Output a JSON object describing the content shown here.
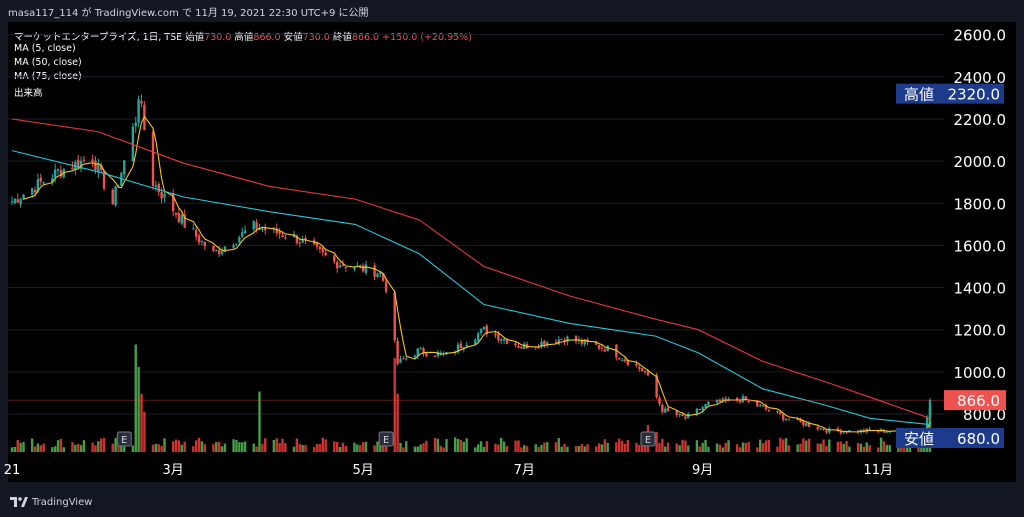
{
  "header": {
    "user": "masa117_114",
    "text": "masa117_114 が TradingView.com で 11月 19, 2021 22:30 UTC+9 に公開"
  },
  "legend": {
    "symbol": "マーケットエンタープライズ, 1日, TSE",
    "open_label": "始値",
    "open": "730.0",
    "high_label": "高値",
    "high": "866.0",
    "low_label": "安値",
    "low": "730.0",
    "close_label": "終値",
    "close": "866.0",
    "change": "+150.0 (+20.95%)",
    "ma5": "MA (5, close)",
    "ma50": "MA (50, close)",
    "ma75": "MA (75, close)",
    "volume": "出来高"
  },
  "price_labels": {
    "high_tag": "高値",
    "high_value": "2320.0",
    "last_value": "866.0",
    "low_tag": "安値",
    "low_value": "680.0"
  },
  "brand": "TradingView",
  "colors": {
    "up": "#26a69a",
    "down": "#ef5350",
    "ma5": "#f5c518",
    "ma50": "#26c6da",
    "ma75": "#e53935",
    "tag_bg": "#1e3a8a"
  },
  "chart_data": {
    "type": "candlestick",
    "ylim": [
      620,
      2660
    ],
    "yticks": [
      "2600.0",
      "2400.0",
      "2200.0",
      "2000.0",
      "1800.0",
      "1600.0",
      "1400.0",
      "1200.0",
      "1000.0",
      "800.0"
    ],
    "ytick_values": [
      2600,
      2400,
      2200,
      2000,
      1800,
      1600,
      1400,
      1200,
      1000,
      800
    ],
    "xticks": [
      {
        "label": "21",
        "date": "2021-01-04"
      },
      {
        "label": "3月",
        "date": "2021-03-01"
      },
      {
        "label": "5月",
        "date": "2021-05-06"
      },
      {
        "label": "7月",
        "date": "2021-07-01"
      },
      {
        "label": "9月",
        "date": "2021-09-01"
      },
      {
        "label": "11月",
        "date": "2021-11-01"
      }
    ],
    "earnings_markers": [
      {
        "label": "E",
        "date": "2021-02-12"
      },
      {
        "label": "E",
        "date": "2021-05-14"
      },
      {
        "label": "E",
        "date": "2021-08-13"
      }
    ],
    "key_points": [
      {
        "date": "2021-01-04",
        "close": 1810
      },
      {
        "date": "2021-01-20",
        "close": 1950
      },
      {
        "date": "2021-02-01",
        "close": 2020
      },
      {
        "date": "2021-02-08",
        "close": 1800
      },
      {
        "date": "2021-02-12",
        "close": 2000
      },
      {
        "date": "2021-02-16",
        "close": 2200
      },
      {
        "date": "2021-02-17",
        "close": 2320
      },
      {
        "date": "2021-02-22",
        "close": 1900
      },
      {
        "date": "2021-03-05",
        "close": 1700
      },
      {
        "date": "2021-03-15",
        "close": 1560
      },
      {
        "date": "2021-03-29",
        "close": 1690
      },
      {
        "date": "2021-04-12",
        "close": 1640
      },
      {
        "date": "2021-04-26",
        "close": 1520
      },
      {
        "date": "2021-05-12",
        "close": 1470
      },
      {
        "date": "2021-05-14",
        "close": 1400
      },
      {
        "date": "2021-05-18",
        "close": 1040
      },
      {
        "date": "2021-05-25",
        "close": 1100
      },
      {
        "date": "2021-06-04",
        "close": 1080
      },
      {
        "date": "2021-06-17",
        "close": 1200
      },
      {
        "date": "2021-06-30",
        "close": 1120
      },
      {
        "date": "2021-07-15",
        "close": 1160
      },
      {
        "date": "2021-07-30",
        "close": 1110
      },
      {
        "date": "2021-08-12",
        "close": 1000
      },
      {
        "date": "2021-08-18",
        "close": 820
      },
      {
        "date": "2021-08-26",
        "close": 780
      },
      {
        "date": "2021-09-03",
        "close": 850
      },
      {
        "date": "2021-09-15",
        "close": 870
      },
      {
        "date": "2021-09-30",
        "close": 780
      },
      {
        "date": "2021-10-15",
        "close": 720
      },
      {
        "date": "2021-11-04",
        "close": 720
      },
      {
        "date": "2021-11-17",
        "close": 716
      },
      {
        "date": "2021-11-19",
        "close": 866
      }
    ],
    "ma50_points": [
      [
        0,
        2050
      ],
      [
        20,
        1950
      ],
      [
        40,
        1830
      ],
      [
        60,
        1760
      ],
      [
        80,
        1700
      ],
      [
        95,
        1560
      ],
      [
        110,
        1320
      ],
      [
        130,
        1230
      ],
      [
        150,
        1170
      ],
      [
        160,
        1090
      ],
      [
        175,
        920
      ],
      [
        190,
        840
      ],
      [
        200,
        780
      ],
      [
        214,
        750
      ]
    ],
    "ma75_points": [
      [
        0,
        2200
      ],
      [
        20,
        2140
      ],
      [
        40,
        1990
      ],
      [
        60,
        1880
      ],
      [
        80,
        1820
      ],
      [
        95,
        1720
      ],
      [
        110,
        1500
      ],
      [
        130,
        1360
      ],
      [
        150,
        1250
      ],
      [
        160,
        1200
      ],
      [
        175,
        1050
      ],
      [
        190,
        950
      ],
      [
        200,
        880
      ],
      [
        214,
        780
      ]
    ],
    "volume_ylim": [
      0,
      500
    ]
  }
}
